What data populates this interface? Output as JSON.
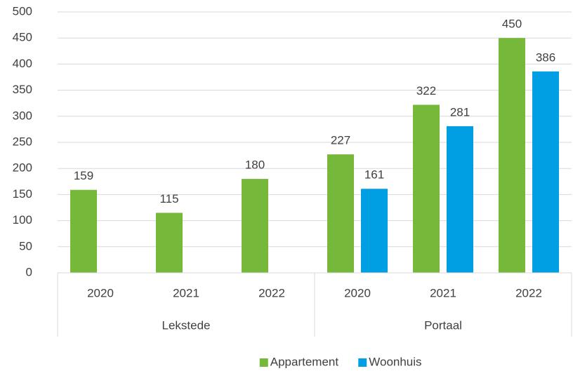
{
  "chart_data": {
    "type": "bar",
    "groups": [
      {
        "name": "Lekstede",
        "categories": [
          "2020",
          "2021",
          "2022"
        ]
      },
      {
        "name": "Portaal",
        "categories": [
          "2020",
          "2021",
          "2022"
        ]
      }
    ],
    "series": [
      {
        "name": "Appartement",
        "color": "#76b83a",
        "values": [
          159,
          115,
          180,
          227,
          322,
          450
        ]
      },
      {
        "name": "Woonhuis",
        "color": "#009fe3",
        "values": [
          null,
          null,
          null,
          161,
          281,
          386
        ]
      }
    ],
    "ylim": [
      0,
      500
    ],
    "yticks": [
      0,
      50,
      100,
      150,
      200,
      250,
      300,
      350,
      400,
      450,
      500
    ],
    "grid": true,
    "legend": "bottom"
  }
}
